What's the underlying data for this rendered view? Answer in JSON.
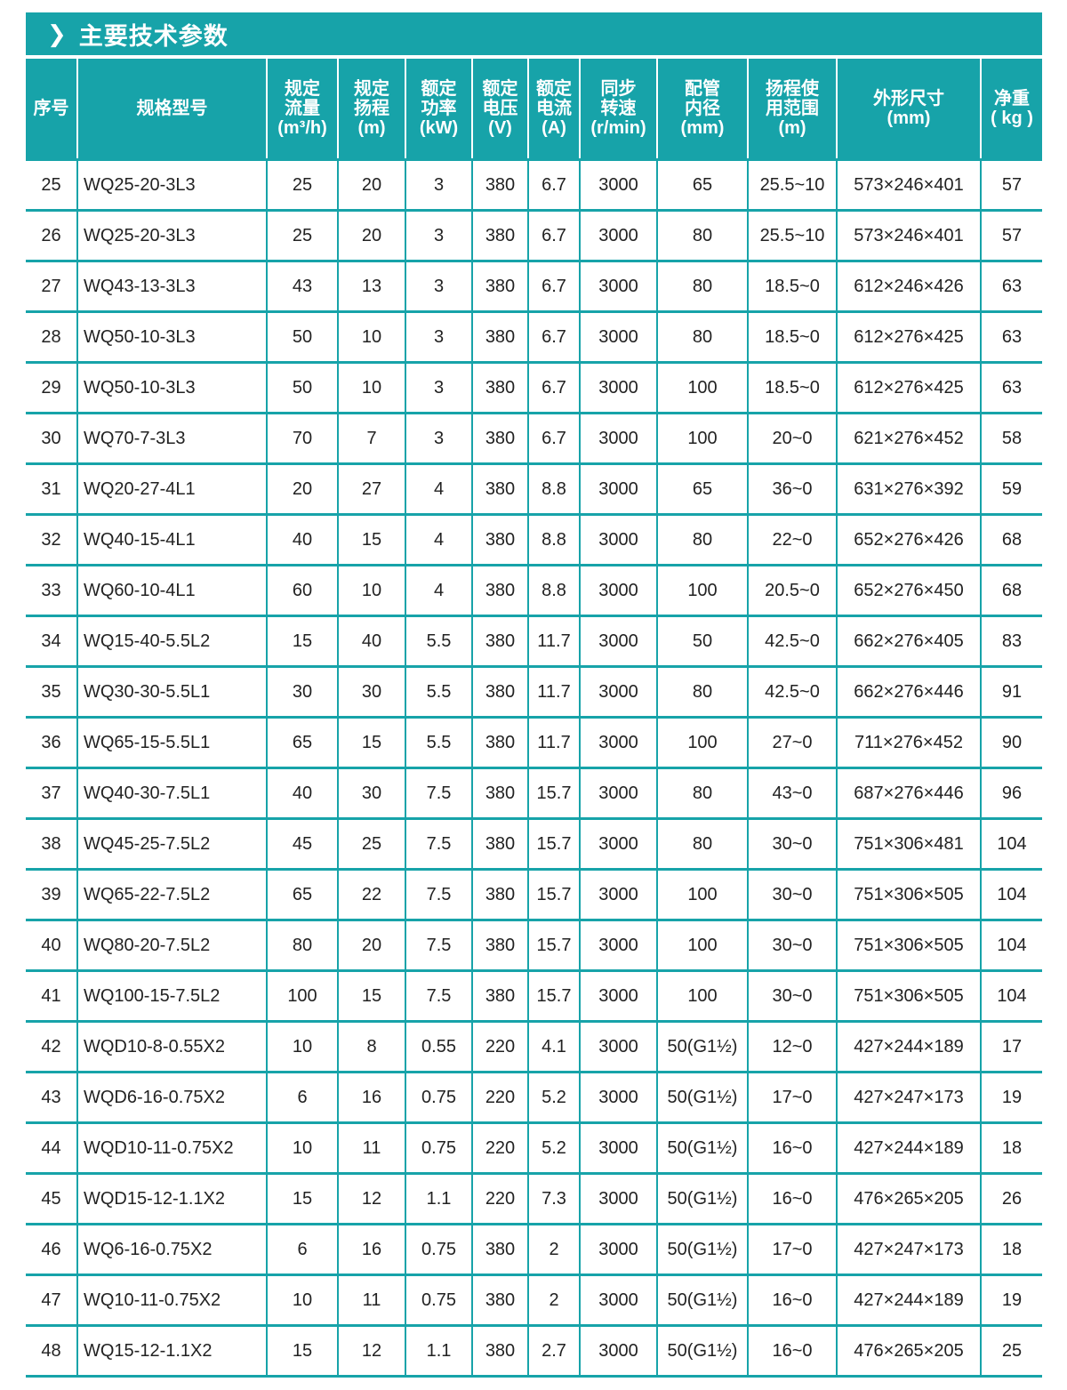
{
  "title": {
    "icon": "chevron-right-icon",
    "text": "主要技术参数"
  },
  "accent_color": "#17a3a9",
  "columns": [
    [
      "序号"
    ],
    [
      "规格型号"
    ],
    [
      "规定",
      "流量",
      "(m³/h)"
    ],
    [
      "规定",
      "扬程",
      "(m)"
    ],
    [
      "额定",
      "功率",
      "(kW)"
    ],
    [
      "额定",
      "电压",
      "(V)"
    ],
    [
      "额定",
      "电流",
      "(A)"
    ],
    [
      "同步",
      "转速",
      "(r/min)"
    ],
    [
      "配管",
      "内径",
      "(mm)"
    ],
    [
      "扬程使",
      "用范围",
      "(m)"
    ],
    [
      "外形尺寸",
      "(mm)"
    ],
    [
      "净重",
      "( kg )"
    ]
  ],
  "rows": [
    [
      "25",
      "WQ25-20-3L3",
      "25",
      "20",
      "3",
      "380",
      "6.7",
      "3000",
      "65",
      "25.5~10",
      "573×246×401",
      "57"
    ],
    [
      "26",
      "WQ25-20-3L3",
      "25",
      "20",
      "3",
      "380",
      "6.7",
      "3000",
      "80",
      "25.5~10",
      "573×246×401",
      "57"
    ],
    [
      "27",
      "WQ43-13-3L3",
      "43",
      "13",
      "3",
      "380",
      "6.7",
      "3000",
      "80",
      "18.5~0",
      "612×246×426",
      "63"
    ],
    [
      "28",
      "WQ50-10-3L3",
      "50",
      "10",
      "3",
      "380",
      "6.7",
      "3000",
      "80",
      "18.5~0",
      "612×276×425",
      "63"
    ],
    [
      "29",
      "WQ50-10-3L3",
      "50",
      "10",
      "3",
      "380",
      "6.7",
      "3000",
      "100",
      "18.5~0",
      "612×276×425",
      "63"
    ],
    [
      "30",
      "WQ70-7-3L3",
      "70",
      "7",
      "3",
      "380",
      "6.7",
      "3000",
      "100",
      "20~0",
      "621×276×452",
      "58"
    ],
    [
      "31",
      "WQ20-27-4L1",
      "20",
      "27",
      "4",
      "380",
      "8.8",
      "3000",
      "65",
      "36~0",
      "631×276×392",
      "59"
    ],
    [
      "32",
      "WQ40-15-4L1",
      "40",
      "15",
      "4",
      "380",
      "8.8",
      "3000",
      "80",
      "22~0",
      "652×276×426",
      "68"
    ],
    [
      "33",
      "WQ60-10-4L1",
      "60",
      "10",
      "4",
      "380",
      "8.8",
      "3000",
      "100",
      "20.5~0",
      "652×276×450",
      "68"
    ],
    [
      "34",
      "WQ15-40-5.5L2",
      "15",
      "40",
      "5.5",
      "380",
      "11.7",
      "3000",
      "50",
      "42.5~0",
      "662×276×405",
      "83"
    ],
    [
      "35",
      "WQ30-30-5.5L1",
      "30",
      "30",
      "5.5",
      "380",
      "11.7",
      "3000",
      "80",
      "42.5~0",
      "662×276×446",
      "91"
    ],
    [
      "36",
      "WQ65-15-5.5L1",
      "65",
      "15",
      "5.5",
      "380",
      "11.7",
      "3000",
      "100",
      "27~0",
      "711×276×452",
      "90"
    ],
    [
      "37",
      "WQ40-30-7.5L1",
      "40",
      "30",
      "7.5",
      "380",
      "15.7",
      "3000",
      "80",
      "43~0",
      "687×276×446",
      "96"
    ],
    [
      "38",
      "WQ45-25-7.5L2",
      "45",
      "25",
      "7.5",
      "380",
      "15.7",
      "3000",
      "80",
      "30~0",
      "751×306×481",
      "104"
    ],
    [
      "39",
      "WQ65-22-7.5L2",
      "65",
      "22",
      "7.5",
      "380",
      "15.7",
      "3000",
      "100",
      "30~0",
      "751×306×505",
      "104"
    ],
    [
      "40",
      "WQ80-20-7.5L2",
      "80",
      "20",
      "7.5",
      "380",
      "15.7",
      "3000",
      "100",
      "30~0",
      "751×306×505",
      "104"
    ],
    [
      "41",
      "WQ100-15-7.5L2",
      "100",
      "15",
      "7.5",
      "380",
      "15.7",
      "3000",
      "100",
      "30~0",
      "751×306×505",
      "104"
    ],
    [
      "42",
      "WQD10-8-0.55X2",
      "10",
      "8",
      "0.55",
      "220",
      "4.1",
      "3000",
      "50(G1½)",
      "12~0",
      "427×244×189",
      "17"
    ],
    [
      "43",
      "WQD6-16-0.75X2",
      "6",
      "16",
      "0.75",
      "220",
      "5.2",
      "3000",
      "50(G1½)",
      "17~0",
      "427×247×173",
      "19"
    ],
    [
      "44",
      "WQD10-11-0.75X2",
      "10",
      "11",
      "0.75",
      "220",
      "5.2",
      "3000",
      "50(G1½)",
      "16~0",
      "427×244×189",
      "18"
    ],
    [
      "45",
      "WQD15-12-1.1X2",
      "15",
      "12",
      "1.1",
      "220",
      "7.3",
      "3000",
      "50(G1½)",
      "16~0",
      "476×265×205",
      "26"
    ],
    [
      "46",
      "WQ6-16-0.75X2",
      "6",
      "16",
      "0.75",
      "380",
      "2",
      "3000",
      "50(G1½)",
      "17~0",
      "427×247×173",
      "18"
    ],
    [
      "47",
      "WQ10-11-0.75X2",
      "10",
      "11",
      "0.75",
      "380",
      "2",
      "3000",
      "50(G1½)",
      "16~0",
      "427×244×189",
      "19"
    ],
    [
      "48",
      "WQ15-12-1.1X2",
      "15",
      "12",
      "1.1",
      "380",
      "2.7",
      "3000",
      "50(G1½)",
      "16~0",
      "476×265×205",
      "25"
    ]
  ]
}
